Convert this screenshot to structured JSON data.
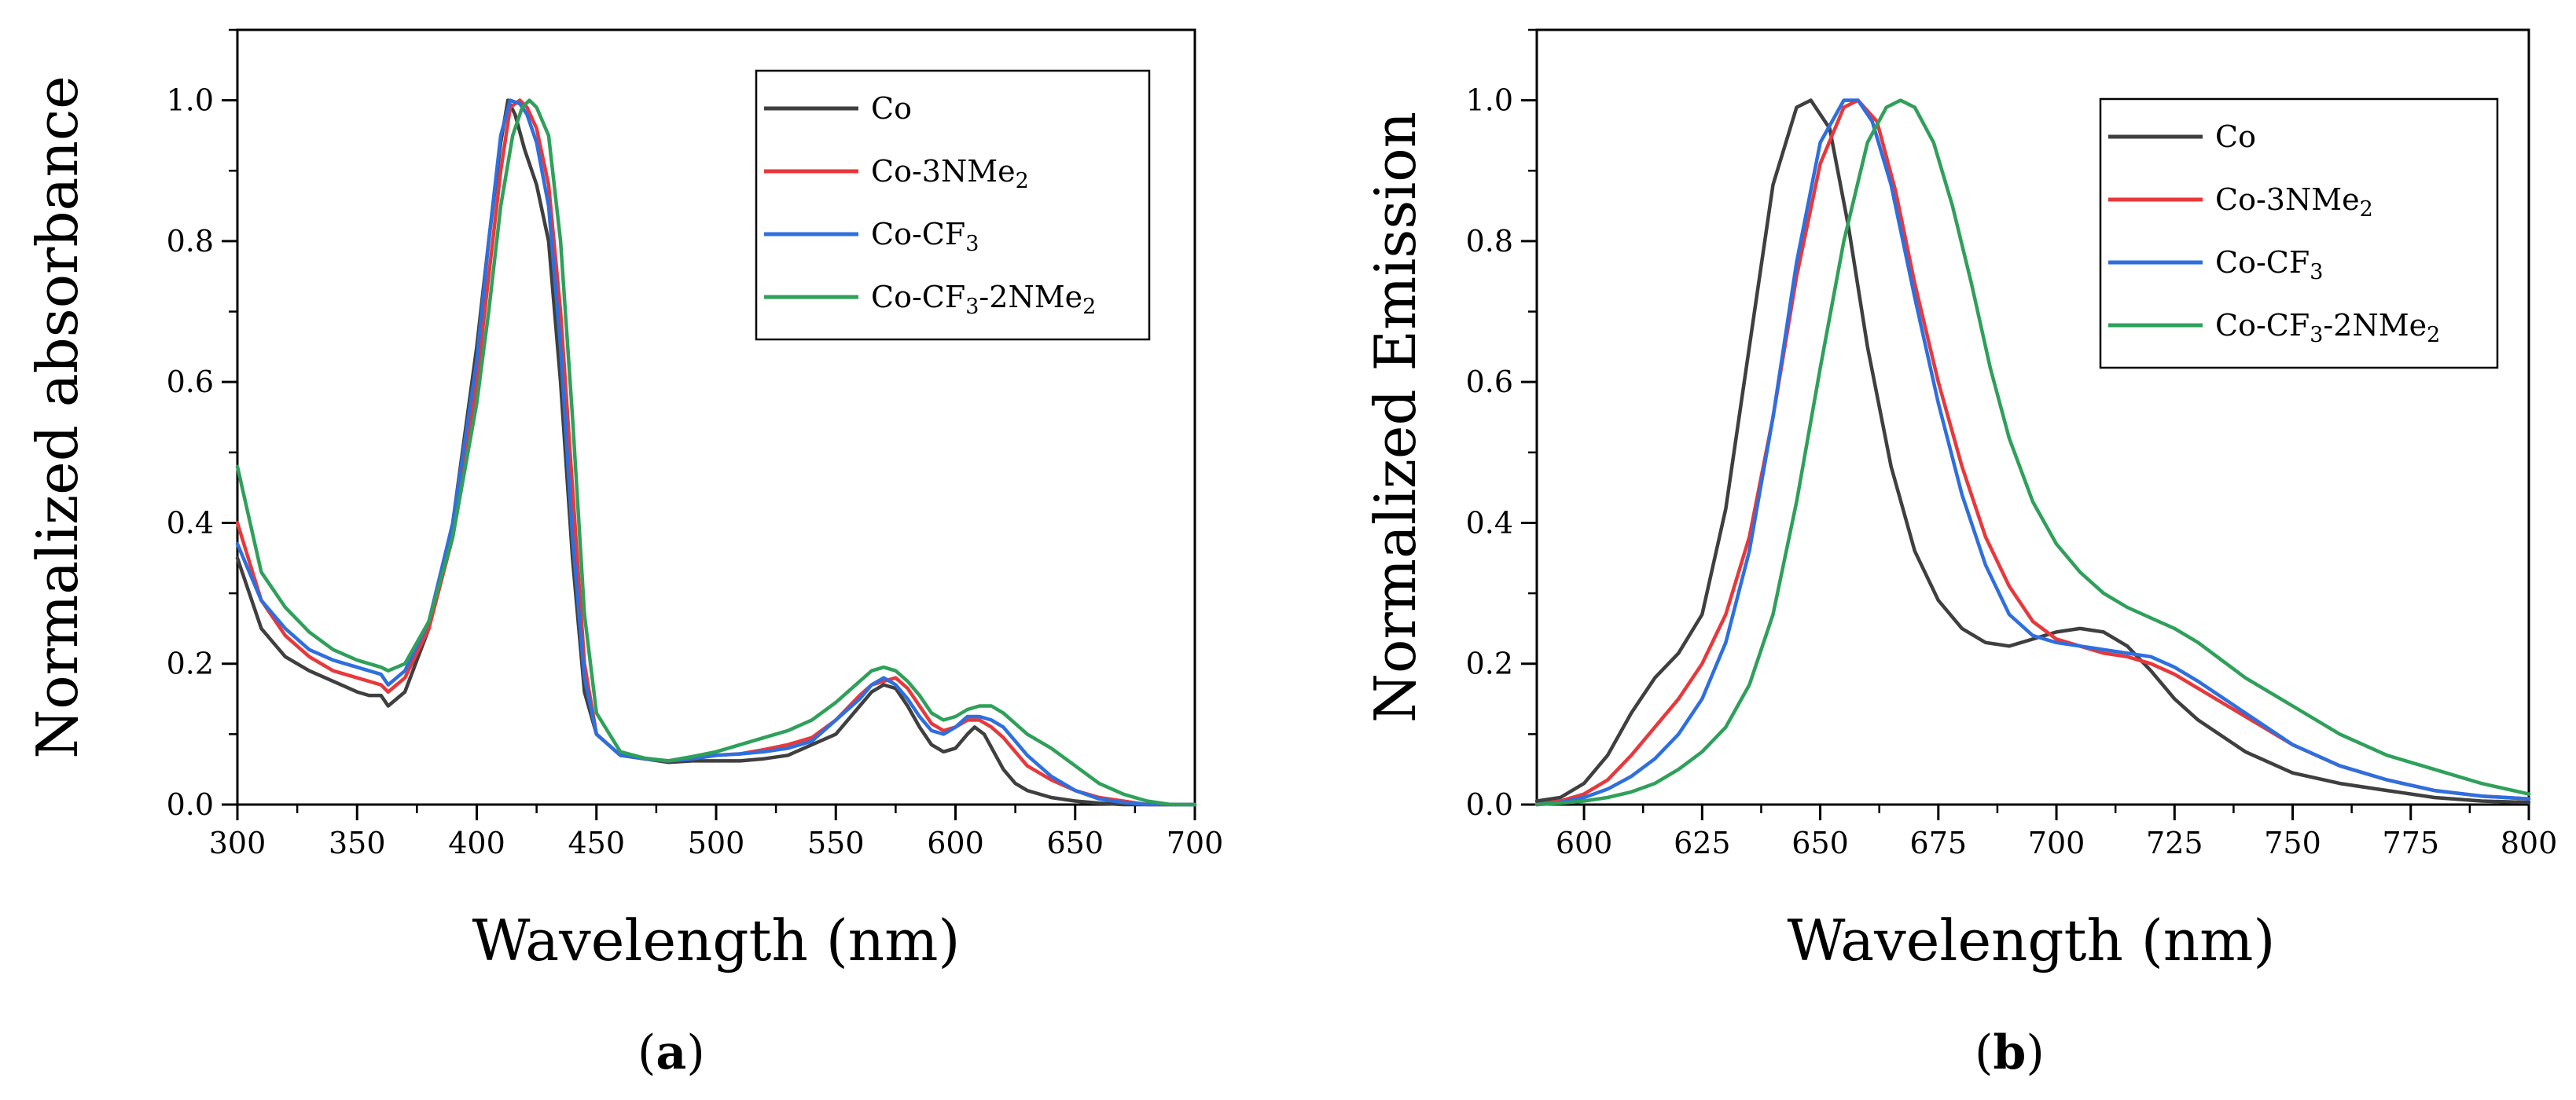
{
  "chart_data": [
    {
      "type": "line",
      "panel_label": "a",
      "xlabel": "Wavelength (nm)",
      "ylabel": "Normalized absorbance",
      "xlim": [
        300,
        700
      ],
      "ylim": [
        0,
        1.1
      ],
      "xticks": [
        300,
        350,
        400,
        450,
        500,
        550,
        600,
        650,
        700
      ],
      "yticks": [
        0.0,
        0.2,
        0.4,
        0.6,
        0.8,
        1.0
      ],
      "legend_position": "top-right",
      "series": [
        {
          "name": "Co",
          "color": "#3f3f3f",
          "x": [
            300,
            310,
            320,
            330,
            340,
            350,
            355,
            360,
            363,
            370,
            380,
            390,
            400,
            405,
            410,
            413,
            416,
            420,
            425,
            430,
            435,
            440,
            445,
            450,
            460,
            470,
            480,
            490,
            500,
            510,
            520,
            530,
            540,
            550,
            560,
            565,
            570,
            575,
            580,
            585,
            590,
            595,
            600,
            605,
            608,
            612,
            616,
            620,
            625,
            630,
            640,
            650,
            660,
            670,
            680,
            690,
            700
          ],
          "y": [
            0.35,
            0.25,
            0.21,
            0.19,
            0.175,
            0.16,
            0.155,
            0.155,
            0.14,
            0.16,
            0.25,
            0.4,
            0.65,
            0.8,
            0.94,
            1.0,
            0.98,
            0.93,
            0.88,
            0.8,
            0.6,
            0.35,
            0.16,
            0.1,
            0.07,
            0.065,
            0.06,
            0.062,
            0.062,
            0.062,
            0.065,
            0.07,
            0.085,
            0.1,
            0.14,
            0.16,
            0.17,
            0.165,
            0.14,
            0.11,
            0.085,
            0.075,
            0.08,
            0.1,
            0.11,
            0.1,
            0.075,
            0.05,
            0.03,
            0.02,
            0.01,
            0.005,
            0.002,
            0.0,
            0.0,
            0.0,
            0.0
          ]
        },
        {
          "name": "Co-3NMe2",
          "color": "#e8383b",
          "x": [
            300,
            310,
            320,
            330,
            340,
            350,
            355,
            360,
            363,
            370,
            380,
            390,
            400,
            405,
            410,
            414,
            418,
            421,
            425,
            430,
            435,
            440,
            445,
            450,
            460,
            470,
            480,
            490,
            500,
            510,
            520,
            530,
            540,
            550,
            560,
            565,
            570,
            575,
            580,
            585,
            590,
            595,
            600,
            605,
            610,
            615,
            620,
            625,
            630,
            640,
            650,
            660,
            670,
            680,
            690,
            700
          ],
          "y": [
            0.4,
            0.29,
            0.24,
            0.21,
            0.19,
            0.18,
            0.175,
            0.17,
            0.16,
            0.18,
            0.25,
            0.38,
            0.6,
            0.75,
            0.9,
            0.99,
            1.0,
            0.99,
            0.96,
            0.88,
            0.7,
            0.45,
            0.2,
            0.1,
            0.07,
            0.065,
            0.062,
            0.065,
            0.07,
            0.072,
            0.078,
            0.085,
            0.095,
            0.12,
            0.155,
            0.17,
            0.175,
            0.18,
            0.165,
            0.14,
            0.115,
            0.105,
            0.11,
            0.12,
            0.12,
            0.11,
            0.095,
            0.075,
            0.055,
            0.035,
            0.02,
            0.01,
            0.005,
            0.0,
            0.0,
            0.0
          ]
        },
        {
          "name": "Co-CF3",
          "color": "#2e6fdf",
          "x": [
            300,
            310,
            320,
            330,
            340,
            350,
            355,
            360,
            363,
            370,
            380,
            390,
            400,
            405,
            410,
            414,
            418,
            421,
            425,
            430,
            435,
            440,
            445,
            450,
            460,
            470,
            480,
            490,
            500,
            510,
            520,
            530,
            540,
            550,
            560,
            565,
            570,
            575,
            580,
            585,
            590,
            595,
            600,
            605,
            610,
            615,
            620,
            625,
            630,
            640,
            650,
            660,
            670,
            680,
            690,
            700
          ],
          "y": [
            0.37,
            0.29,
            0.25,
            0.22,
            0.205,
            0.195,
            0.19,
            0.185,
            0.17,
            0.19,
            0.26,
            0.4,
            0.63,
            0.8,
            0.95,
            1.0,
            0.995,
            0.98,
            0.94,
            0.85,
            0.65,
            0.38,
            0.18,
            0.1,
            0.07,
            0.065,
            0.062,
            0.065,
            0.07,
            0.072,
            0.075,
            0.08,
            0.09,
            0.12,
            0.15,
            0.17,
            0.18,
            0.17,
            0.15,
            0.125,
            0.105,
            0.1,
            0.11,
            0.125,
            0.125,
            0.12,
            0.11,
            0.09,
            0.07,
            0.04,
            0.02,
            0.008,
            0.003,
            0.0,
            0.0,
            0.0
          ]
        },
        {
          "name": "Co-CF3-2NMe2",
          "color": "#2fa05a",
          "x": [
            300,
            310,
            320,
            330,
            340,
            350,
            355,
            360,
            363,
            370,
            380,
            390,
            400,
            405,
            410,
            415,
            419,
            422,
            425,
            430,
            435,
            440,
            445,
            450,
            460,
            470,
            480,
            490,
            500,
            510,
            520,
            530,
            540,
            550,
            560,
            565,
            570,
            575,
            580,
            585,
            590,
            595,
            600,
            605,
            610,
            615,
            620,
            625,
            630,
            640,
            650,
            660,
            670,
            680,
            690,
            700
          ],
          "y": [
            0.48,
            0.33,
            0.28,
            0.245,
            0.22,
            0.205,
            0.2,
            0.195,
            0.19,
            0.2,
            0.26,
            0.38,
            0.57,
            0.7,
            0.85,
            0.95,
            0.99,
            1.0,
            0.99,
            0.95,
            0.8,
            0.55,
            0.27,
            0.13,
            0.075,
            0.066,
            0.062,
            0.068,
            0.075,
            0.085,
            0.095,
            0.105,
            0.12,
            0.145,
            0.175,
            0.19,
            0.195,
            0.19,
            0.175,
            0.155,
            0.13,
            0.12,
            0.125,
            0.135,
            0.14,
            0.14,
            0.13,
            0.115,
            0.1,
            0.08,
            0.055,
            0.03,
            0.015,
            0.005,
            0.0,
            0.0
          ]
        }
      ]
    },
    {
      "type": "line",
      "panel_label": "b",
      "xlabel": "Wavelength (nm)",
      "ylabel": "Normalized Emission",
      "xlim": [
        590,
        800
      ],
      "ylim": [
        0,
        1.1
      ],
      "xticks": [
        600,
        625,
        650,
        675,
        700,
        725,
        750,
        775,
        800
      ],
      "yticks": [
        0.0,
        0.2,
        0.4,
        0.6,
        0.8,
        1.0
      ],
      "legend_position": "top-right",
      "series": [
        {
          "name": "Co",
          "color": "#3f3f3f",
          "x": [
            590,
            595,
            600,
            605,
            610,
            615,
            620,
            625,
            630,
            635,
            640,
            645,
            648,
            652,
            656,
            660,
            665,
            670,
            675,
            680,
            685,
            690,
            695,
            700,
            705,
            710,
            715,
            720,
            725,
            730,
            740,
            750,
            760,
            770,
            780,
            790,
            800
          ],
          "y": [
            0.005,
            0.01,
            0.03,
            0.07,
            0.13,
            0.18,
            0.215,
            0.27,
            0.42,
            0.65,
            0.88,
            0.99,
            1.0,
            0.96,
            0.82,
            0.65,
            0.48,
            0.36,
            0.29,
            0.25,
            0.23,
            0.225,
            0.235,
            0.245,
            0.25,
            0.245,
            0.225,
            0.19,
            0.15,
            0.12,
            0.075,
            0.045,
            0.03,
            0.02,
            0.01,
            0.005,
            0.003
          ]
        },
        {
          "name": "Co-3NMe2",
          "color": "#e8383b",
          "x": [
            590,
            595,
            600,
            605,
            610,
            615,
            620,
            625,
            630,
            635,
            640,
            645,
            650,
            655,
            658,
            662,
            666,
            670,
            675,
            680,
            685,
            690,
            695,
            700,
            705,
            710,
            715,
            720,
            725,
            730,
            740,
            750,
            760,
            770,
            780,
            790,
            800
          ],
          "y": [
            0.0,
            0.005,
            0.015,
            0.035,
            0.07,
            0.11,
            0.15,
            0.2,
            0.27,
            0.38,
            0.55,
            0.75,
            0.91,
            0.99,
            1.0,
            0.97,
            0.87,
            0.74,
            0.6,
            0.48,
            0.38,
            0.31,
            0.26,
            0.235,
            0.225,
            0.215,
            0.21,
            0.2,
            0.185,
            0.165,
            0.125,
            0.085,
            0.055,
            0.035,
            0.02,
            0.012,
            0.008
          ]
        },
        {
          "name": "Co-CF3",
          "color": "#2e6fdf",
          "x": [
            590,
            595,
            600,
            605,
            610,
            615,
            620,
            625,
            630,
            635,
            640,
            645,
            650,
            655,
            658,
            661,
            665,
            670,
            675,
            680,
            685,
            690,
            695,
            700,
            705,
            710,
            715,
            720,
            725,
            730,
            740,
            750,
            760,
            770,
            780,
            790,
            800
          ],
          "y": [
            0.0,
            0.003,
            0.01,
            0.022,
            0.04,
            0.065,
            0.1,
            0.15,
            0.23,
            0.36,
            0.55,
            0.77,
            0.94,
            1.0,
            1.0,
            0.97,
            0.88,
            0.72,
            0.57,
            0.44,
            0.34,
            0.27,
            0.24,
            0.23,
            0.225,
            0.22,
            0.215,
            0.21,
            0.195,
            0.175,
            0.13,
            0.085,
            0.055,
            0.035,
            0.02,
            0.012,
            0.008
          ]
        },
        {
          "name": "Co-CF3-2NMe2",
          "color": "#2fa05a",
          "x": [
            590,
            595,
            600,
            605,
            610,
            615,
            620,
            625,
            630,
            635,
            640,
            645,
            650,
            655,
            660,
            664,
            667,
            670,
            674,
            678,
            682,
            686,
            690,
            695,
            700,
            705,
            710,
            715,
            720,
            725,
            730,
            740,
            750,
            760,
            770,
            780,
            790,
            800
          ],
          "y": [
            0.0,
            0.002,
            0.005,
            0.01,
            0.018,
            0.03,
            0.05,
            0.075,
            0.11,
            0.17,
            0.27,
            0.43,
            0.62,
            0.8,
            0.94,
            0.99,
            1.0,
            0.99,
            0.94,
            0.85,
            0.74,
            0.62,
            0.52,
            0.43,
            0.37,
            0.33,
            0.3,
            0.28,
            0.265,
            0.25,
            0.23,
            0.18,
            0.14,
            0.1,
            0.07,
            0.05,
            0.03,
            0.015
          ]
        }
      ]
    }
  ],
  "legend": {
    "labels": [
      {
        "pre": "Co",
        "sub1": "",
        "mid": "",
        "sub2": ""
      },
      {
        "pre": "Co-3NMe",
        "sub1": "2",
        "mid": "",
        "sub2": ""
      },
      {
        "pre": "Co-CF",
        "sub1": "3",
        "mid": "",
        "sub2": ""
      },
      {
        "pre": "Co-CF",
        "sub1": "3",
        "mid": "-2NMe",
        "sub2": "2"
      }
    ]
  },
  "colors": {
    "Co": "#3f3f3f",
    "Co-3NMe2": "#e8383b",
    "Co-CF3": "#2e6fdf",
    "Co-CF3-2NMe2": "#2fa05a"
  }
}
